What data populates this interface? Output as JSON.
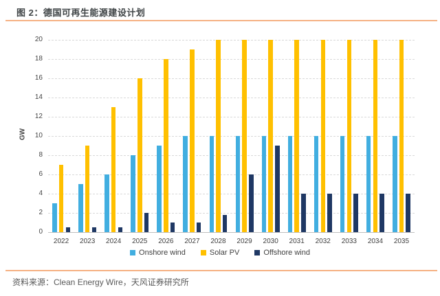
{
  "header": {
    "title": "图 2：德国可再生能源建设计划"
  },
  "footer": {
    "source": "资料来源：Clean Energy Wire，天风证券研究所"
  },
  "accents": {
    "rule_color": "#f6b183"
  },
  "chart_data": {
    "type": "bar",
    "title": "图 2：德国可再生能源建设计划",
    "categories": [
      "2022",
      "2023",
      "2024",
      "2025",
      "2026",
      "2027",
      "2028",
      "2029",
      "2030",
      "2031",
      "2032",
      "2033",
      "2034",
      "2035"
    ],
    "series": [
      {
        "name": "Onshore wind",
        "color": "#41aee0",
        "values": [
          3,
          5,
          6,
          8,
          9,
          10,
          10,
          10,
          10,
          10,
          10,
          10,
          10,
          10
        ]
      },
      {
        "name": "Solar PV",
        "color": "#ffc000",
        "values": [
          7,
          9,
          13,
          16,
          18,
          19,
          20,
          20,
          20,
          20,
          20,
          20,
          20,
          20
        ]
      },
      {
        "name": "Offshore wind",
        "color": "#1f3864",
        "values": [
          0.5,
          0.5,
          0.5,
          2,
          1,
          1,
          1.8,
          6,
          9,
          4,
          4,
          4,
          4,
          4
        ]
      }
    ],
    "xlabel": "",
    "ylabel": "GW",
    "ylim": [
      0,
      20
    ],
    "ytick_step": 2,
    "grid": true,
    "grid_style": "dashed",
    "legend_position": "bottom"
  }
}
